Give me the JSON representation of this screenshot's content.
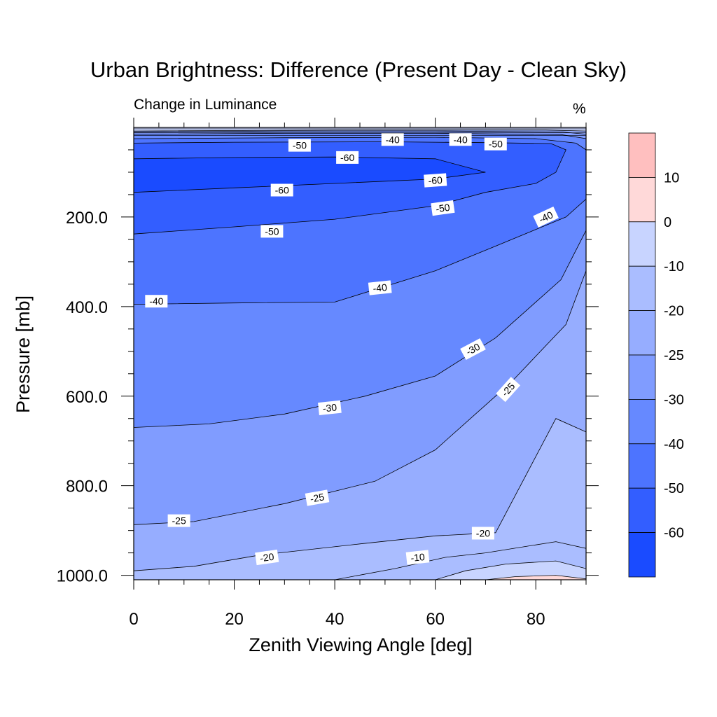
{
  "chart_data": {
    "type": "contour",
    "title": "Urban Brightness: Difference (Present Day - Clean Sky)",
    "subtitle": "Change in Luminance",
    "units": "%",
    "xlabel": "Zenith Viewing Angle [deg]",
    "ylabel": "Pressure [mb]",
    "xlim": [
      0,
      90
    ],
    "ylim": [
      1010,
      0
    ],
    "y_reversed": true,
    "x_ticks": [
      "0",
      "20",
      "40",
      "60",
      "80"
    ],
    "x_tick_values": [
      0,
      20,
      40,
      60,
      80
    ],
    "y_ticks": [
      "200.0",
      "400.0",
      "600.0",
      "800.0",
      "1000.0"
    ],
    "y_tick_values": [
      200,
      400,
      600,
      800,
      1000
    ],
    "colorbar": {
      "boundaries": [
        "10",
        "0",
        "-10",
        "-20",
        "-25",
        "-30",
        "-40",
        "-50",
        "-60"
      ],
      "colors": [
        "#ffbfbf",
        "#ffd9d9",
        "#c8d4ff",
        "#aabdff",
        "#96adff",
        "#809cff",
        "#6689ff",
        "#4d74ff",
        "#335eff",
        "#1a4bff"
      ]
    },
    "contours": [
      {
        "level": -60,
        "fill": "#1a4bff",
        "points": [
          [
            0,
            70
          ],
          [
            20,
            67
          ],
          [
            40,
            66
          ],
          [
            60,
            70
          ],
          [
            70,
            100
          ],
          [
            60,
            115
          ],
          [
            40,
            125
          ],
          [
            20,
            135
          ],
          [
            0,
            145
          ]
        ]
      },
      {
        "level": -50,
        "fill": "#335eff",
        "points": [
          [
            0,
            35
          ],
          [
            20,
            33
          ],
          [
            50,
            32
          ],
          [
            70,
            34
          ],
          [
            83,
            36
          ],
          [
            86,
            50
          ],
          [
            84,
            100
          ],
          [
            80,
            125
          ],
          [
            70,
            145
          ],
          [
            60,
            175
          ],
          [
            40,
            205
          ],
          [
            20,
            222
          ],
          [
            0,
            238
          ]
        ]
      },
      {
        "level": -40,
        "fill": "#4d74ff",
        "points": [
          [
            0,
            25
          ],
          [
            30,
            23
          ],
          [
            60,
            22
          ],
          [
            80,
            25
          ],
          [
            88,
            35
          ],
          [
            90,
            50
          ],
          [
            90,
            160
          ],
          [
            86,
            200
          ],
          [
            72,
            265
          ],
          [
            60,
            320
          ],
          [
            40,
            390
          ],
          [
            20,
            392
          ],
          [
            0,
            395
          ]
        ]
      },
      {
        "level": -30,
        "fill": "#6689ff",
        "points": [
          [
            0,
            15
          ],
          [
            30,
            13
          ],
          [
            60,
            13
          ],
          [
            85,
            16
          ],
          [
            90,
            25
          ],
          [
            90,
            230
          ],
          [
            85,
            340
          ],
          [
            72,
            470
          ],
          [
            60,
            555
          ],
          [
            46,
            600
          ],
          [
            30,
            640
          ],
          [
            15,
            662
          ],
          [
            0,
            670
          ]
        ]
      },
      {
        "level": -25,
        "fill": "#809cff",
        "points": [
          [
            0,
            10
          ],
          [
            30,
            8
          ],
          [
            60,
            8
          ],
          [
            85,
            10
          ],
          [
            90,
            15
          ],
          [
            90,
            320
          ],
          [
            86,
            440
          ],
          [
            75,
            570
          ],
          [
            68,
            640
          ],
          [
            60,
            720
          ],
          [
            48,
            790
          ],
          [
            30,
            840
          ],
          [
            12,
            880
          ],
          [
            0,
            887
          ]
        ]
      },
      {
        "level": -20,
        "fill": "#96adff",
        "points": [
          [
            0,
            8
          ],
          [
            40,
            6
          ],
          [
            82,
            6
          ],
          [
            90,
            8
          ],
          [
            90,
            680
          ],
          [
            84,
            650
          ],
          [
            72,
            905
          ],
          [
            60,
            912
          ],
          [
            45,
            930
          ],
          [
            25,
            955
          ],
          [
            12,
            980
          ],
          [
            0,
            990
          ]
        ]
      },
      {
        "level": -10,
        "fill": "#aabdff",
        "points": [
          [
            40,
            1010
          ],
          [
            52,
            985
          ],
          [
            62,
            960
          ],
          [
            70,
            950
          ],
          [
            84,
            925
          ],
          [
            90,
            940
          ],
          [
            90,
            1010
          ]
        ]
      },
      {
        "level": 0,
        "fill": "#c8d4ff",
        "points": [
          [
            60,
            1010
          ],
          [
            66,
            990
          ],
          [
            74,
            975
          ],
          [
            84,
            968
          ],
          [
            90,
            985
          ],
          [
            90,
            1010
          ]
        ]
      },
      {
        "level": 10,
        "fill": "#ffd9d9",
        "points": [
          [
            70,
            1010
          ],
          [
            76,
            1003
          ],
          [
            84,
            1000
          ],
          [
            90,
            1008
          ],
          [
            90,
            1010
          ]
        ]
      }
    ],
    "top_band": {
      "level": 0,
      "fill": "#c8d4ff",
      "points": [
        [
          0,
          0
        ],
        [
          90,
          0
        ],
        [
          90,
          8
        ],
        [
          0,
          8
        ]
      ]
    },
    "contour_labels": [
      {
        "text": "-50",
        "x": 33,
        "y": 40,
        "angle": 0
      },
      {
        "text": "-40",
        "x": 51.5,
        "y": 27,
        "angle": 0
      },
      {
        "text": "-40",
        "x": 65,
        "y": 27,
        "angle": 0
      },
      {
        "text": "-50",
        "x": 72,
        "y": 37,
        "angle": 0
      },
      {
        "text": "-60",
        "x": 42.5,
        "y": 67,
        "angle": 0
      },
      {
        "text": "-60",
        "x": 29.5,
        "y": 140,
        "angle": 0
      },
      {
        "text": "-60",
        "x": 60,
        "y": 118,
        "angle": -4
      },
      {
        "text": "-50",
        "x": 61.5,
        "y": 180,
        "angle": -8
      },
      {
        "text": "-50",
        "x": 27.5,
        "y": 232,
        "angle": 0
      },
      {
        "text": "-40",
        "x": 82,
        "y": 200,
        "angle": -25
      },
      {
        "text": "-40",
        "x": 49,
        "y": 358,
        "angle": -6
      },
      {
        "text": "-40",
        "x": 4.5,
        "y": 388,
        "angle": 0
      },
      {
        "text": "-30",
        "x": 67.5,
        "y": 495,
        "angle": -28
      },
      {
        "text": "-30",
        "x": 39,
        "y": 626,
        "angle": -6
      },
      {
        "text": "-25",
        "x": 74.5,
        "y": 585,
        "angle": -48
      },
      {
        "text": "-25",
        "x": 36.5,
        "y": 827,
        "angle": -10
      },
      {
        "text": "-25",
        "x": 9,
        "y": 878,
        "angle": 0
      },
      {
        "text": "-20",
        "x": 69.5,
        "y": 906,
        "angle": 0
      },
      {
        "text": "-20",
        "x": 26.5,
        "y": 960,
        "angle": -8
      },
      {
        "text": "-10",
        "x": 56.5,
        "y": 960,
        "angle": -6
      }
    ]
  }
}
